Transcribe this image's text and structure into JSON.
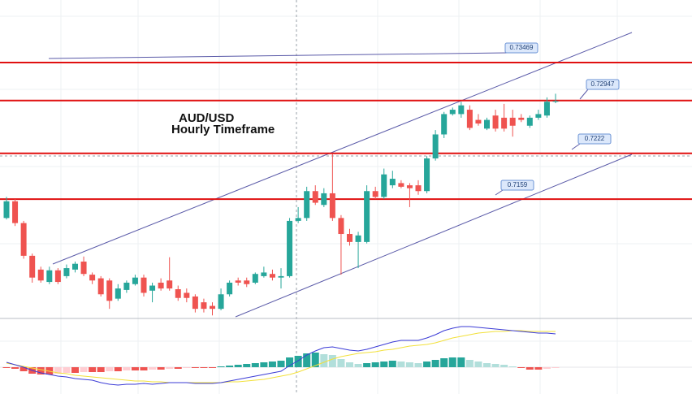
{
  "chart_data": {
    "type": "candlestick",
    "title": "AUD/USD",
    "subtitle": "Hourly Timeframe",
    "ylim": [
      0.6997,
      0.7433
    ],
    "up_color": "#26a69a",
    "down_color": "#ef5350",
    "open": [
      0.7133,
      0.7156,
      0.7126,
      0.7081,
      0.7062,
      0.7045,
      0.7061,
      0.7053,
      0.7062,
      0.7073,
      0.7055,
      0.705,
      0.7047,
      0.7022,
      0.7034,
      0.7042,
      0.7051,
      0.7033,
      0.7044,
      0.7047,
      0.7035,
      0.703,
      0.7025,
      0.7017,
      0.7012,
      0.7008,
      0.7028,
      0.7047,
      0.7047,
      0.7044,
      0.7053,
      0.7056,
      0.7051,
      0.7053,
      0.7129,
      0.7133,
      0.717,
      0.7151,
      0.7167,
      0.7133,
      0.7111,
      0.71,
      0.71,
      0.717,
      0.7162,
      0.7178,
      0.7181,
      0.7178,
      0.7178,
      0.717,
      0.7215,
      0.7248,
      0.7276,
      0.7276,
      0.7282,
      0.7268,
      0.7256,
      0.7274,
      0.7271,
      0.7271,
      0.7271,
      0.726,
      0.7271,
      0.7274,
      0.7293
    ],
    "high": [
      0.7162,
      0.7159,
      0.7129,
      0.7084,
      0.7066,
      0.7066,
      0.7064,
      0.7069,
      0.7073,
      0.708,
      0.7058,
      0.7053,
      0.705,
      0.7042,
      0.7047,
      0.7055,
      0.7055,
      0.7044,
      0.705,
      0.7079,
      0.704,
      0.7036,
      0.7028,
      0.7022,
      0.7017,
      0.7036,
      0.7047,
      0.7051,
      0.7051,
      0.7058,
      0.7066,
      0.7062,
      0.7064,
      0.7133,
      0.7148,
      0.7176,
      0.7178,
      0.7174,
      0.7221,
      0.7137,
      0.7118,
      0.7114,
      0.7178,
      0.7176,
      0.7201,
      0.7198,
      0.7185,
      0.7181,
      0.7185,
      0.7218,
      0.7254,
      0.7279,
      0.7285,
      0.7293,
      0.7288,
      0.7276,
      0.7271,
      0.7282,
      0.729,
      0.7282,
      0.7276,
      0.7274,
      0.7282,
      0.7299,
      0.7304
    ],
    "low": [
      0.7131,
      0.7122,
      0.7077,
      0.7044,
      0.7044,
      0.7042,
      0.7042,
      0.705,
      0.7058,
      0.7053,
      0.7042,
      0.7025,
      0.7008,
      0.7019,
      0.703,
      0.704,
      0.7025,
      0.7017,
      0.7033,
      0.7033,
      0.7019,
      0.7017,
      0.7003,
      0.7003,
      0.6999,
      0.7006,
      0.7025,
      0.704,
      0.7038,
      0.7042,
      0.7051,
      0.7047,
      0.7036,
      0.7051,
      0.7126,
      0.7129,
      0.7151,
      0.7148,
      0.7129,
      0.7055,
      0.7095,
      0.7064,
      0.7098,
      0.7159,
      0.7159,
      0.7174,
      0.7174,
      0.7148,
      0.7165,
      0.7167,
      0.7212,
      0.7243,
      0.7274,
      0.7271,
      0.7254,
      0.726,
      0.7254,
      0.7252,
      0.7252,
      0.7245,
      0.7265,
      0.7257,
      0.7268,
      0.7271,
      0.7291
    ],
    "close": [
      0.7156,
      0.7126,
      0.7081,
      0.7051,
      0.7047,
      0.7061,
      0.7045,
      0.7064,
      0.707,
      0.7056,
      0.7047,
      0.7028,
      0.7019,
      0.7036,
      0.7044,
      0.7051,
      0.703,
      0.704,
      0.7036,
      0.7036,
      0.7023,
      0.7023,
      0.7008,
      0.7008,
      0.7008,
      0.7028,
      0.7044,
      0.7044,
      0.7042,
      0.7056,
      0.7058,
      0.7051,
      0.7053,
      0.7129,
      0.7133,
      0.717,
      0.7154,
      0.7167,
      0.7133,
      0.7111,
      0.71,
      0.7109,
      0.717,
      0.7162,
      0.7193,
      0.7187,
      0.7176,
      0.7174,
      0.717,
      0.7215,
      0.7248,
      0.7276,
      0.7282,
      0.7288,
      0.7257,
      0.7263,
      0.7268,
      0.7256,
      0.7256,
      0.726,
      0.7268,
      0.7271,
      0.7276,
      0.7293,
      0.7294
    ],
    "levels": [
      0.73469,
      0.72947,
      0.7222,
      0.7159
    ],
    "level_color": "#e01010",
    "macd": {
      "ylim": [
        -33,
        60
      ],
      "macd_color": "#3b3bd6",
      "signal_color": "#f2e03a",
      "histogram": [
        -1,
        -2,
        -5,
        -8,
        -9,
        -9,
        -8,
        -7,
        -7,
        -6,
        -6,
        -6,
        -5,
        -5,
        -4,
        -4,
        -4,
        -3,
        -3,
        -2,
        -2,
        -1,
        -1,
        -1,
        -1,
        1,
        2,
        3,
        4,
        5,
        6,
        7,
        8,
        12,
        14,
        17,
        18,
        16,
        15,
        10,
        6,
        4,
        5,
        6,
        7,
        8,
        7,
        6,
        5,
        7,
        9,
        11,
        12,
        12,
        9,
        7,
        5,
        4,
        3,
        1,
        -1,
        -3,
        -3,
        -2,
        -1
      ],
      "macd": [
        6,
        3,
        0,
        -4,
        -7,
        -9,
        -11,
        -12,
        -14,
        -15,
        -16,
        -19,
        -21,
        -22,
        -21,
        -21,
        -20,
        -21,
        -20,
        -19,
        -19,
        -19,
        -20,
        -20,
        -20,
        -19,
        -17,
        -15,
        -13,
        -11,
        -9,
        -7,
        -5,
        2,
        8,
        15,
        20,
        24,
        25,
        23,
        21,
        20,
        22,
        25,
        28,
        31,
        33,
        33,
        33,
        36,
        40,
        45,
        48,
        50,
        50,
        49,
        48,
        47,
        46,
        45,
        44,
        43,
        42,
        42,
        41
      ],
      "signal": [
        5,
        3,
        1,
        -1,
        -3,
        -5,
        -7,
        -8,
        -10,
        -11,
        -12,
        -13,
        -14,
        -15,
        -16,
        -17,
        -17,
        -18,
        -18,
        -19,
        -19,
        -19,
        -19,
        -19,
        -19,
        -19,
        -18,
        -18,
        -17,
        -16,
        -15,
        -13,
        -11,
        -9,
        -6,
        -2,
        2,
        6,
        10,
        13,
        15,
        17,
        18,
        19,
        21,
        22,
        24,
        26,
        27,
        28,
        30,
        33,
        36,
        38,
        40,
        42,
        43,
        44,
        44,
        45,
        45,
        44,
        44,
        44,
        44
      ]
    }
  }
}
